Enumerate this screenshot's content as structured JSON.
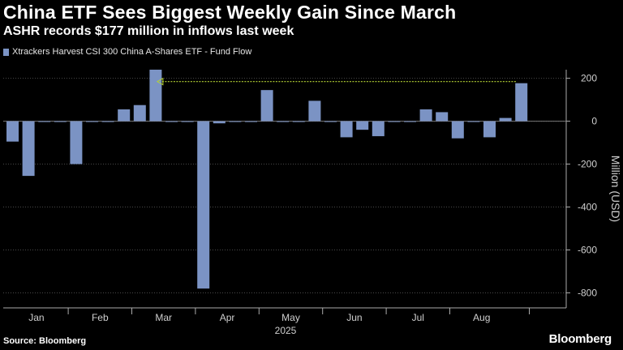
{
  "header": {
    "title": "China ETF Sees Biggest Weekly Gain Since March",
    "subtitle": "ASHR records $177 million in inflows last week"
  },
  "footer": {
    "source": "Source: Bloomberg",
    "brand": "Bloomberg"
  },
  "colors": {
    "background": "#000000",
    "bar": "#7b93c4",
    "grid": "#4a4a4a",
    "annotation": "#b5d334"
  },
  "chart_data": {
    "type": "bar",
    "title": "China ETF Sees Biggest Weekly Gain Since March",
    "subtitle": "ASHR records $177 million in inflows last week",
    "legend": [
      "Xtrackers Harvest CSI 300 China A-Shares ETF - Fund Flow"
    ],
    "ylabel": "Million (USD)",
    "xlabel": "2025",
    "ylim": [
      -870,
      240
    ],
    "yticks": [
      200,
      0,
      -200,
      -400,
      -600,
      -800
    ],
    "month_labels": [
      "Jan",
      "Feb",
      "Mar",
      "Apr",
      "May",
      "Jun",
      "Jul",
      "Aug"
    ],
    "month_week_index": [
      1,
      5,
      9,
      13,
      17,
      21,
      25,
      29
    ],
    "year_label": "2025",
    "series": [
      {
        "name": "Xtrackers Harvest CSI 300 China A-Shares ETF - Fund Flow",
        "values": [
          -95,
          -255,
          0,
          -2,
          -200,
          0,
          0,
          55,
          75,
          240,
          0,
          -2,
          -780,
          -10,
          0,
          0,
          145,
          0,
          0,
          95,
          0,
          -75,
          -40,
          -70,
          0,
          0,
          55,
          42,
          -80,
          0,
          -75,
          15,
          177
        ]
      }
    ],
    "annotation": {
      "type": "arrow",
      "label": "",
      "from_index": 32,
      "to_index": 9,
      "value": 177
    }
  }
}
